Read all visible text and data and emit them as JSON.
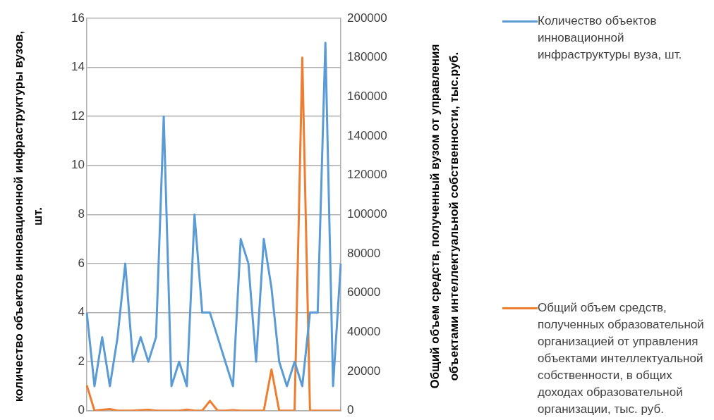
{
  "chart_data": {
    "type": "line",
    "categories": [
      null,
      null,
      null,
      null,
      null,
      null,
      null,
      null,
      null,
      null,
      null,
      null,
      null,
      null,
      null,
      null,
      null,
      null,
      null,
      null,
      null,
      null,
      null,
      null,
      null,
      null,
      null,
      null,
      null,
      null,
      null,
      null,
      null,
      null
    ],
    "series": [
      {
        "name": "Количество объектов инновационной инфраструктуры вуза, шт.",
        "color": "#5b9bd5",
        "values": [
          4,
          1,
          3,
          1,
          3,
          6,
          2,
          3,
          2,
          3,
          12,
          1,
          2,
          1,
          8,
          4,
          4,
          3,
          2,
          1,
          7,
          6,
          2,
          7,
          5,
          2,
          1,
          2,
          1,
          4,
          4,
          15,
          1,
          6
        ]
      },
      {
        "name": "Общий объем средств, полученных образовательной организацией от управления объектами интеллектуальной собственности, в общих доходах образовательной организации, тыс. руб.",
        "color": "#ed7d31",
        "axis": "y2",
        "values": [
          13000,
          0,
          500,
          800,
          0,
          0,
          0,
          300,
          500,
          0,
          0,
          0,
          0,
          600,
          0,
          0,
          5000,
          0,
          0,
          300,
          0,
          0,
          0,
          0,
          21000,
          0,
          0,
          0,
          180000,
          0,
          0,
          0,
          0,
          0
        ]
      }
    ],
    "ylabel": "количество объектов инновационной инфраструктуры вузов, шт.",
    "y2label": "Общий объем средств, полученный вузом от управления объектами интеллектуальной собственности, тыс.руб.",
    "ylim": [
      0,
      16
    ],
    "yticks": [
      0,
      2,
      4,
      6,
      8,
      10,
      12,
      14,
      16
    ],
    "y2lim": [
      0,
      200000
    ],
    "y2ticks": [
      0,
      20000,
      40000,
      60000,
      80000,
      100000,
      120000,
      140000,
      160000,
      180000,
      200000
    ],
    "grid": "y",
    "legend": "right",
    "tick_labels": "y",
    "marker": "none",
    "line_style": "solid"
  }
}
